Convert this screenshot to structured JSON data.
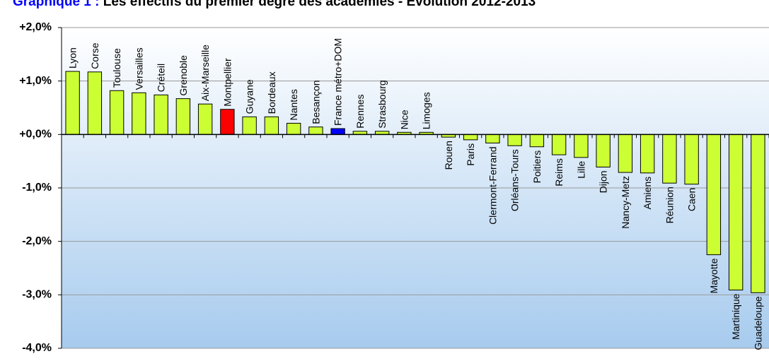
{
  "chart_data": {
    "type": "bar",
    "title_prefix": "Graphique 1 : ",
    "title_main": "Les effectifs du premier degré des académies - Evolution 2012-2013",
    "xlabel": "",
    "ylabel": "",
    "ylim": [
      -4,
      2
    ],
    "yticks": [
      {
        "value": 2,
        "label": "+2,0%"
      },
      {
        "value": 1,
        "label": "+1,0%"
      },
      {
        "value": 0,
        "label": "+0,0%"
      },
      {
        "value": -1,
        "label": "-1,0%"
      },
      {
        "value": -2,
        "label": "-2,0%"
      },
      {
        "value": -3,
        "label": "-3,0%"
      },
      {
        "value": -4,
        "label": "-4,0%"
      }
    ],
    "grid": true,
    "categories": [
      "Lyon",
      "Corse",
      "Toulouse",
      "Versailles",
      "Créteil",
      "Grenoble",
      "Aix-Marseille",
      "Montpellier",
      "Guyane",
      "Bordeaux",
      "Nantes",
      "Besançon",
      "France métro+DOM",
      "Rennes",
      "Strasbourg",
      "Nice",
      "Limoges",
      "Rouen",
      "Paris",
      "Clermont-Ferrand",
      "Orléans-Tours",
      "Poitiers",
      "Reims",
      "Lille",
      "Dijon",
      "Nancy-Metz",
      "Amiens",
      "Réunion",
      "Caen",
      "Mayotte",
      "Martinique",
      "Guadeloupe"
    ],
    "values": [
      1.18,
      1.17,
      0.82,
      0.78,
      0.74,
      0.67,
      0.57,
      0.47,
      0.33,
      0.33,
      0.21,
      0.14,
      0.11,
      0.06,
      0.06,
      0.04,
      0.04,
      -0.05,
      -0.1,
      -0.16,
      -0.21,
      -0.23,
      -0.38,
      -0.43,
      -0.61,
      -0.71,
      -0.72,
      -0.91,
      -0.93,
      -2.25,
      -2.91,
      -2.96
    ],
    "colors": {
      "default": "#ccff33",
      "highlight_red": "#ff0000",
      "highlight_blue": "#0000ff",
      "title_prefix": "#0000ff",
      "bg_top": "#ffffff",
      "bg_bottom": "#a7cbee",
      "grid": "#999999"
    },
    "highlights": {
      "Montpellier": "highlight_red",
      "France métro+DOM": "highlight_blue"
    }
  }
}
